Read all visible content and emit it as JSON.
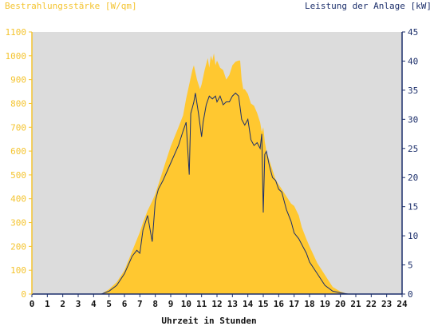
{
  "chart_data": {
    "type": "area",
    "title_left": "Bestrahlungsstärke [W/qm]",
    "title_right": "Leistung der Anlage [kW]",
    "xlabel": "Uhrzeit in Stunden",
    "xlim": [
      0,
      24
    ],
    "ylim_left": [
      0,
      1100
    ],
    "ylim_right": [
      0,
      45
    ],
    "grid": false,
    "x_ticks": [
      "0",
      "1",
      "2",
      "3",
      "4",
      "5",
      "6",
      "7",
      "8",
      "9",
      "10",
      "11",
      "12",
      "13",
      "14",
      "15",
      "16",
      "17",
      "18",
      "19",
      "20",
      "21",
      "22",
      "23",
      "24"
    ],
    "y_ticks_left": [
      "0",
      "100",
      "200",
      "300",
      "400",
      "500",
      "600",
      "700",
      "800",
      "900",
      "1000",
      "1100"
    ],
    "y_ticks_right": [
      "0",
      "5",
      "10",
      "15",
      "20",
      "25",
      "30",
      "35",
      "40",
      "45"
    ],
    "colors": {
      "irradiance": "#ffc830",
      "power": "#1c2f6b",
      "plot_bg": "#dcdcdc",
      "left_axis": "#f4c430",
      "right_axis": "#1c2f6b"
    },
    "series": [
      {
        "name": "Bestrahlungsstärke [W/qm]",
        "axis": "left",
        "type": "area",
        "x": [
          0,
          4.5,
          5.0,
          5.5,
          6.0,
          6.5,
          7.0,
          7.2,
          7.5,
          7.8,
          8.0,
          8.5,
          9.0,
          9.5,
          9.8,
          10.0,
          10.2,
          10.4,
          10.5,
          10.7,
          10.9,
          11.0,
          11.2,
          11.4,
          11.5,
          11.6,
          11.7,
          11.8,
          11.9,
          12.0,
          12.2,
          12.4,
          12.6,
          12.8,
          13.0,
          13.2,
          13.4,
          13.5,
          13.6,
          13.7,
          13.8,
          14.0,
          14.2,
          14.4,
          14.6,
          14.8,
          14.9,
          15.0,
          15.1,
          15.2,
          15.4,
          15.6,
          15.8,
          16.0,
          16.2,
          16.5,
          16.8,
          17.0,
          17.3,
          17.5,
          17.8,
          18.0,
          18.5,
          19.0,
          19.5,
          20.0,
          20.5,
          21.0,
          24
        ],
        "values": [
          0,
          0,
          20,
          50,
          100,
          180,
          260,
          300,
          350,
          390,
          420,
          520,
          620,
          700,
          750,
          820,
          880,
          940,
          960,
          900,
          860,
          880,
          940,
          990,
          950,
          1000,
          980,
          1010,
          960,
          980,
          950,
          940,
          900,
          920,
          960,
          975,
          980,
          980,
          900,
          860,
          860,
          840,
          800,
          790,
          760,
          720,
          680,
          700,
          640,
          600,
          560,
          520,
          480,
          460,
          440,
          410,
          380,
          370,
          330,
          280,
          230,
          200,
          130,
          80,
          30,
          10,
          0,
          0,
          0
        ]
      },
      {
        "name": "Leistung der Anlage [kW]",
        "axis": "right",
        "type": "line",
        "x": [
          0,
          4.5,
          5.0,
          5.5,
          6.0,
          6.5,
          6.8,
          7.0,
          7.2,
          7.5,
          7.8,
          8.0,
          8.2,
          8.5,
          9.0,
          9.5,
          9.8,
          10.0,
          10.2,
          10.3,
          10.4,
          10.5,
          10.6,
          10.8,
          11.0,
          11.1,
          11.3,
          11.5,
          11.7,
          11.9,
          12.0,
          12.2,
          12.4,
          12.6,
          12.8,
          13.0,
          13.2,
          13.4,
          13.6,
          13.8,
          14.0,
          14.2,
          14.4,
          14.6,
          14.8,
          14.9,
          15.0,
          15.1,
          15.2,
          15.4,
          15.6,
          15.8,
          16.0,
          16.2,
          16.5,
          16.8,
          17.0,
          17.3,
          17.5,
          17.8,
          18.0,
          18.5,
          19.0,
          19.5,
          20.0,
          20.5,
          21.0,
          24
        ],
        "values": [
          0,
          0,
          0.5,
          1.5,
          3.5,
          6.5,
          7.5,
          7,
          11,
          13.5,
          9,
          16,
          18,
          19.5,
          22.5,
          25.5,
          28,
          29.5,
          20.5,
          31,
          32,
          33,
          34.5,
          31,
          27,
          29.5,
          32.5,
          34,
          33.5,
          34,
          33,
          34,
          32.5,
          33,
          33,
          34,
          34.5,
          34,
          30,
          29,
          30,
          26.5,
          25.5,
          26,
          25,
          27.5,
          14,
          24,
          24.5,
          22,
          20,
          19.5,
          18,
          17.5,
          14.5,
          12.5,
          10.5,
          9.5,
          8.5,
          7,
          5.5,
          3.5,
          1.5,
          0.5,
          0.2,
          0,
          0,
          0
        ]
      }
    ]
  }
}
